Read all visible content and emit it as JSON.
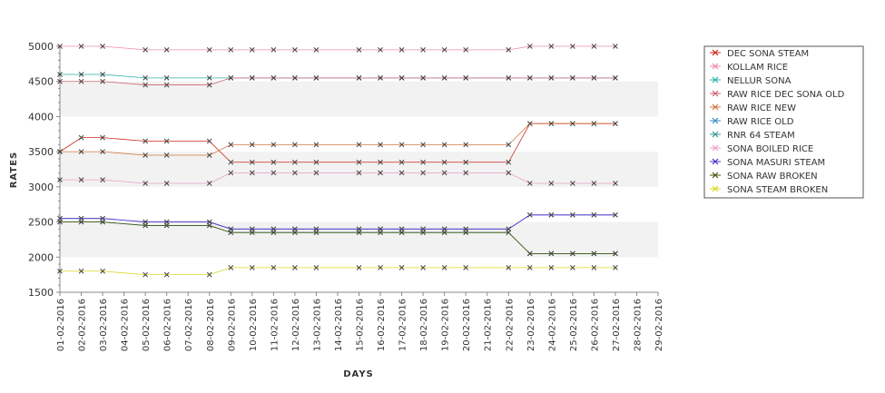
{
  "chart_data": {
    "type": "line",
    "title": "",
    "xlabel": "DAYS",
    "ylabel": "RATES",
    "ylim": [
      1500,
      5000
    ],
    "y_ticks": [
      1500,
      2000,
      2500,
      3000,
      3500,
      4000,
      4500,
      5000
    ],
    "grid": "alternating horizontal bands",
    "legend_position": "right",
    "x": [
      "01-02-2016",
      "02-02-2016",
      "03-02-2016",
      "04-02-2016",
      "05-02-2016",
      "06-02-2016",
      "07-02-2016",
      "08-02-2016",
      "09-02-2016",
      "10-02-2016",
      "11-02-2016",
      "12-02-2016",
      "13-02-2016",
      "14-02-2016",
      "15-02-2016",
      "16-02-2016",
      "17-02-2016",
      "18-02-2016",
      "19-02-2016",
      "20-02-2016",
      "21-02-2016",
      "22-02-2016",
      "23-02-2016",
      "24-02-2016",
      "25-02-2016",
      "26-02-2016",
      "27-02-2016",
      "28-02-2016",
      "29-02-2016"
    ],
    "series": [
      {
        "name": "DEC SONA STEAM",
        "color": "#cc2a1e",
        "values": [
          3500,
          3700,
          3700,
          null,
          3650,
          3650,
          null,
          3650,
          3350,
          3350,
          3350,
          3350,
          3350,
          null,
          3350,
          3350,
          3350,
          3350,
          3350,
          3350,
          null,
          3350,
          3900,
          3900,
          3900,
          3900,
          3900,
          null,
          null
        ]
      },
      {
        "name": "KOLLAM RICE",
        "color": "#ee88aa",
        "values": [
          5000,
          5000,
          5000,
          null,
          4950,
          4950,
          null,
          4950,
          4950,
          4950,
          4950,
          4950,
          4950,
          null,
          4950,
          4950,
          4950,
          4950,
          4950,
          4950,
          null,
          4950,
          5000,
          5000,
          5000,
          5000,
          5000,
          null,
          null
        ]
      },
      {
        "name": "NELLUR SONA",
        "color": "#2ab0a8",
        "values": [
          4600,
          4600,
          4600,
          null,
          4550,
          4550,
          null,
          4550,
          4550,
          4550,
          4550,
          4550,
          4550,
          null,
          4550,
          4550,
          4550,
          4550,
          4550,
          4550,
          null,
          4550,
          4550,
          4550,
          4550,
          4550,
          4550,
          null,
          null
        ]
      },
      {
        "name": "RAW RICE DEC SONA OLD",
        "color": "#d06070",
        "values": [
          4500,
          4500,
          4500,
          null,
          4450,
          4450,
          null,
          4450,
          4550,
          4550,
          4550,
          4550,
          4550,
          null,
          4550,
          4550,
          4550,
          4550,
          4550,
          4550,
          null,
          4550,
          4550,
          4550,
          4550,
          4550,
          4550,
          null,
          null
        ]
      },
      {
        "name": "RAW RICE NEW",
        "color": "#d07840",
        "values": [
          3500,
          3500,
          3500,
          null,
          3450,
          3450,
          null,
          3450,
          3600,
          3600,
          3600,
          3600,
          3600,
          null,
          3600,
          3600,
          3600,
          3600,
          3600,
          3600,
          null,
          3600,
          3900,
          3900,
          3900,
          3900,
          3900,
          null,
          null
        ]
      },
      {
        "name": "RAW RICE OLD",
        "color": "#3a8cc8",
        "values": [
          2550,
          2550,
          2550,
          null,
          2500,
          2500,
          null,
          2500,
          2400,
          2400,
          2400,
          2400,
          2400,
          null,
          2400,
          2400,
          2400,
          2400,
          2400,
          2400,
          null,
          2400,
          2600,
          2600,
          2600,
          2600,
          2600,
          null,
          null
        ]
      },
      {
        "name": "RNR 64 STEAM",
        "color": "#3a9a98",
        "values": [
          2500,
          2500,
          2500,
          null,
          2450,
          2450,
          null,
          2450,
          2350,
          2350,
          2350,
          2350,
          2350,
          null,
          2350,
          2350,
          2350,
          2350,
          2350,
          2350,
          null,
          2350,
          2050,
          2050,
          2050,
          2050,
          2050,
          null,
          null
        ]
      },
      {
        "name": "SONA BOILED RICE",
        "color": "#e8a0c8",
        "values": [
          3100,
          3100,
          3100,
          null,
          3050,
          3050,
          null,
          3050,
          3200,
          3200,
          3200,
          3200,
          3200,
          null,
          3200,
          3200,
          3200,
          3200,
          3200,
          3200,
          null,
          3200,
          3050,
          3050,
          3050,
          3050,
          3050,
          null,
          null
        ]
      },
      {
        "name": "SONA MASURI STEAM",
        "color": "#5030c8",
        "values": [
          2550,
          2550,
          2550,
          null,
          2500,
          2500,
          null,
          2500,
          2400,
          2400,
          2400,
          2400,
          2400,
          null,
          2400,
          2400,
          2400,
          2400,
          2400,
          2400,
          null,
          2400,
          2600,
          2600,
          2600,
          2600,
          2600,
          null,
          null
        ]
      },
      {
        "name": "SONA RAW BROKEN",
        "color": "#445a10",
        "values": [
          2500,
          2500,
          2500,
          null,
          2450,
          2450,
          null,
          2450,
          2350,
          2350,
          2350,
          2350,
          2350,
          null,
          2350,
          2350,
          2350,
          2350,
          2350,
          2350,
          null,
          2350,
          2050,
          2050,
          2050,
          2050,
          2050,
          null,
          null
        ]
      },
      {
        "name": "SONA STEAM BROKEN",
        "color": "#d8d820",
        "values": [
          1800,
          1800,
          1800,
          null,
          1750,
          1750,
          null,
          1750,
          1850,
          1850,
          1850,
          1850,
          1850,
          null,
          1850,
          1850,
          1850,
          1850,
          1850,
          1850,
          null,
          1850,
          1850,
          1850,
          1850,
          1850,
          1850,
          null,
          null
        ]
      }
    ]
  }
}
